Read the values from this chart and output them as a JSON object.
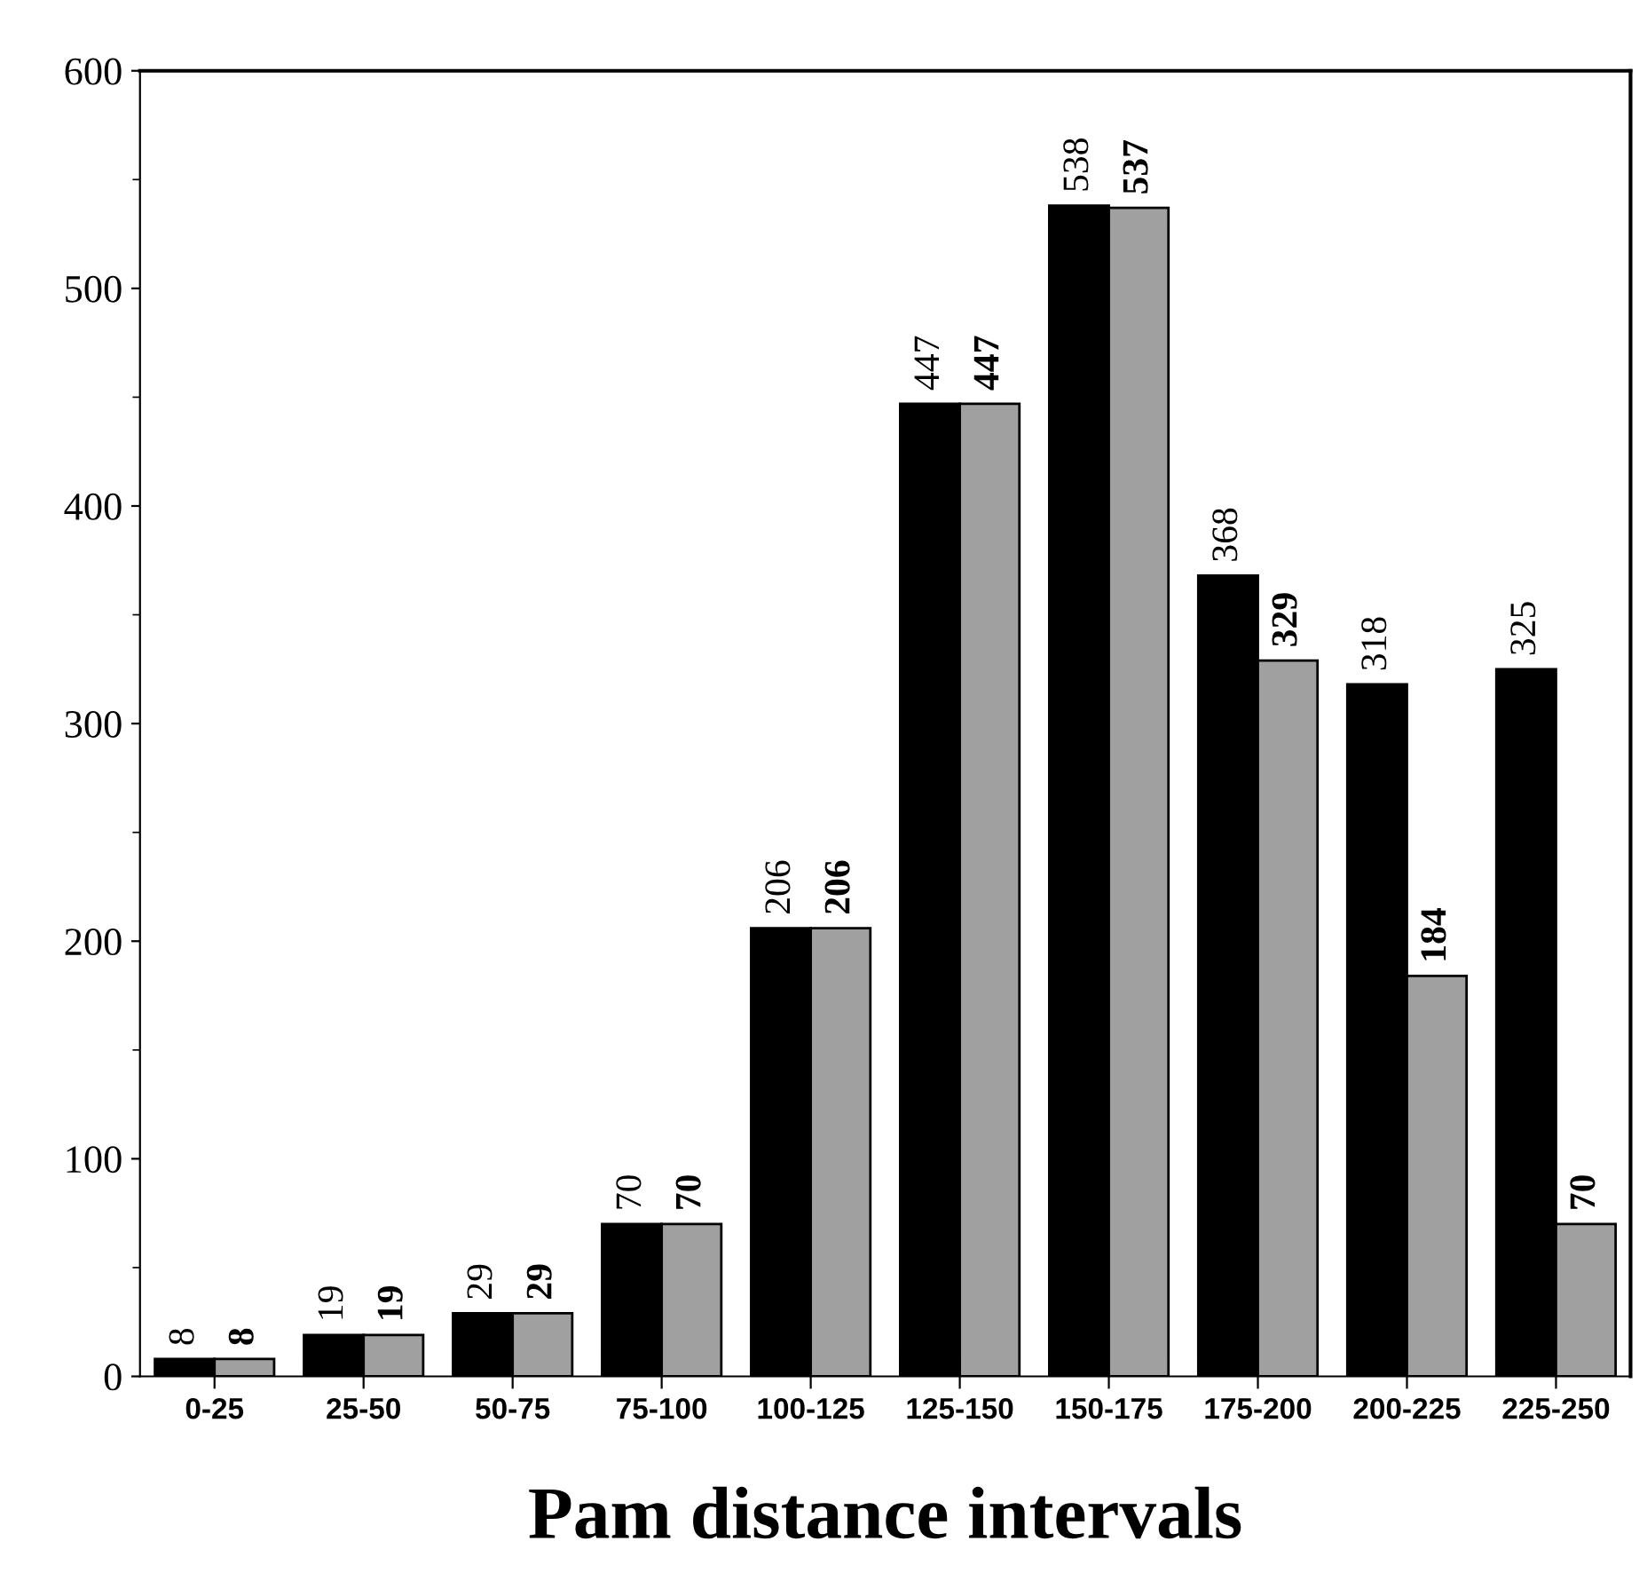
{
  "chart_data": {
    "type": "bar",
    "xlabel": "Pam distance intervals",
    "categories": [
      "0-25",
      "25-50",
      "50-75",
      "75-100",
      "100-125",
      "125-150",
      "150-175",
      "175-200",
      "200-225",
      "225-250"
    ],
    "series": [
      {
        "color": "#000000",
        "values": [
          8,
          19,
          29,
          70,
          206,
          447,
          538,
          368,
          318,
          325
        ]
      },
      {
        "color": "#a0a0a0",
        "values": [
          8,
          19,
          29,
          70,
          206,
          447,
          537,
          329,
          184,
          70
        ]
      }
    ],
    "ylim": [
      0,
      600
    ],
    "yticks": [
      0,
      100,
      200,
      300,
      400,
      500,
      600
    ],
    "data_labels": true,
    "grid": false,
    "legend": false
  }
}
